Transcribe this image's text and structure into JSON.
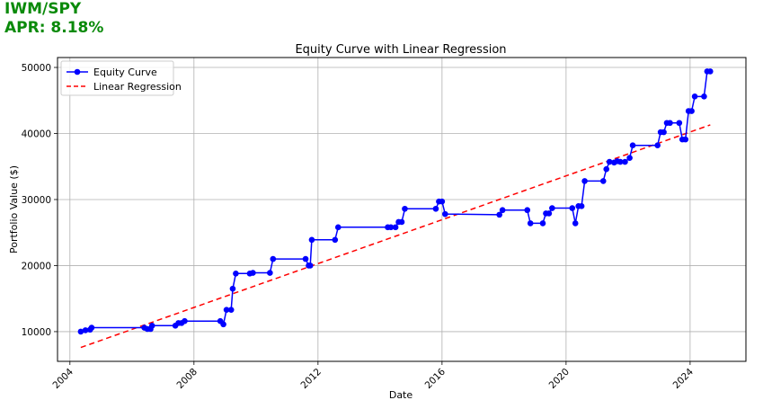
{
  "header": {
    "ticker": "IWM/SPY",
    "apr": "APR: 8.18%",
    "color": "#0a8a0a"
  },
  "chart_data": {
    "type": "line",
    "title": "Equity Curve with Linear Regression",
    "xlabel": "Date",
    "ylabel": "Portfolio Value ($)",
    "xlim": [
      2003.6,
      2025.8
    ],
    "ylim": [
      5500,
      51500
    ],
    "xticks": [
      2004,
      2008,
      2012,
      2016,
      2020,
      2024
    ],
    "yticks": [
      10000,
      20000,
      30000,
      40000,
      50000
    ],
    "grid": true,
    "legend_position": "top-left",
    "series": [
      {
        "name": "Equity Curve",
        "color": "#0000ff",
        "marker": "circle",
        "x": [
          2004.35,
          2004.5,
          2004.65,
          2004.7,
          2006.4,
          2006.5,
          2006.6,
          2006.65,
          2007.4,
          2007.5,
          2007.6,
          2007.7,
          2008.85,
          2008.95,
          2009.05,
          2009.2,
          2009.25,
          2009.35,
          2009.8,
          2009.9,
          2010.45,
          2010.55,
          2011.6,
          2011.7,
          2011.75,
          2011.8,
          2012.55,
          2012.65,
          2014.25,
          2014.35,
          2014.5,
          2014.6,
          2014.7,
          2014.8,
          2015.8,
          2015.9,
          2016.0,
          2016.1,
          2017.85,
          2017.95,
          2018.75,
          2018.85,
          2019.25,
          2019.35,
          2019.45,
          2019.55,
          2020.2,
          2020.3,
          2020.4,
          2020.5,
          2020.6,
          2021.2,
          2021.3,
          2021.4,
          2021.55,
          2021.65,
          2021.75,
          2021.9,
          2022.05,
          2022.15,
          2022.95,
          2023.05,
          2023.15,
          2023.25,
          2023.35,
          2023.65,
          2023.75,
          2023.85,
          2023.95,
          2024.05,
          2024.15,
          2024.45,
          2024.55,
          2024.65
        ],
        "y": [
          10000,
          10200,
          10300,
          10600,
          10600,
          10400,
          10400,
          10900,
          10900,
          11300,
          11300,
          11600,
          11600,
          11100,
          13300,
          13300,
          16500,
          18800,
          18800,
          18900,
          18900,
          21000,
          21000,
          20000,
          20000,
          23900,
          23900,
          25800,
          25800,
          25800,
          25800,
          26600,
          26600,
          28600,
          28600,
          29700,
          29700,
          27800,
          27700,
          28400,
          28400,
          26400,
          26400,
          27900,
          27900,
          28700,
          28700,
          26400,
          29000,
          29000,
          32800,
          32800,
          34600,
          35700,
          35600,
          35800,
          35700,
          35700,
          36300,
          38200,
          38200,
          40200,
          40200,
          41600,
          41600,
          41600,
          39100,
          39100,
          43400,
          43400,
          45600,
          45600,
          49400,
          49400
        ]
      },
      {
        "name": "Linear Regression",
        "color": "#ff0000",
        "style": "dashed",
        "x": [
          2004.35,
          2024.65
        ],
        "y": [
          7600,
          41300
        ]
      }
    ]
  }
}
